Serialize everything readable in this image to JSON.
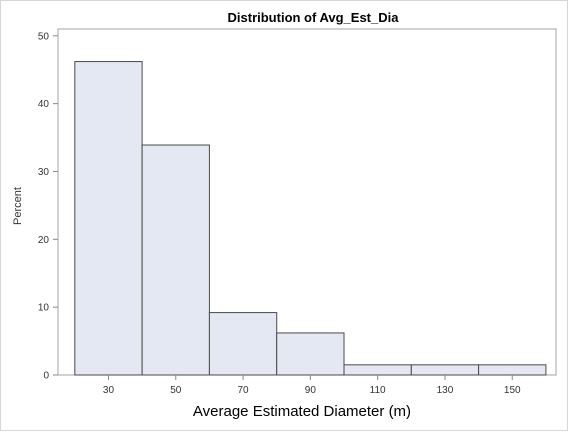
{
  "chart_data": {
    "type": "bar",
    "title": "Distribution of Avg_Est_Dia",
    "xlabel": "Average Estimated Diameter (m)",
    "ylabel": "Percent",
    "bin_edges": [
      20,
      40,
      60,
      80,
      100,
      120,
      140,
      160
    ],
    "categories": [
      "30",
      "50",
      "70",
      "90",
      "110",
      "130",
      "150"
    ],
    "values": [
      46.2,
      33.9,
      9.2,
      6.2,
      1.5,
      1.5,
      1.5
    ],
    "xlim": [
      15,
      163
    ],
    "ylim": [
      0,
      51
    ],
    "yticks": [
      0,
      10,
      20,
      30,
      40,
      50
    ],
    "xticks": [
      30,
      50,
      70,
      90,
      110,
      130,
      150
    ],
    "grid": false,
    "legend": "none",
    "colors": {
      "bar_fill": "#e3e8f2",
      "bar_stroke": "#4a4a4a",
      "axis": "#888888"
    }
  }
}
